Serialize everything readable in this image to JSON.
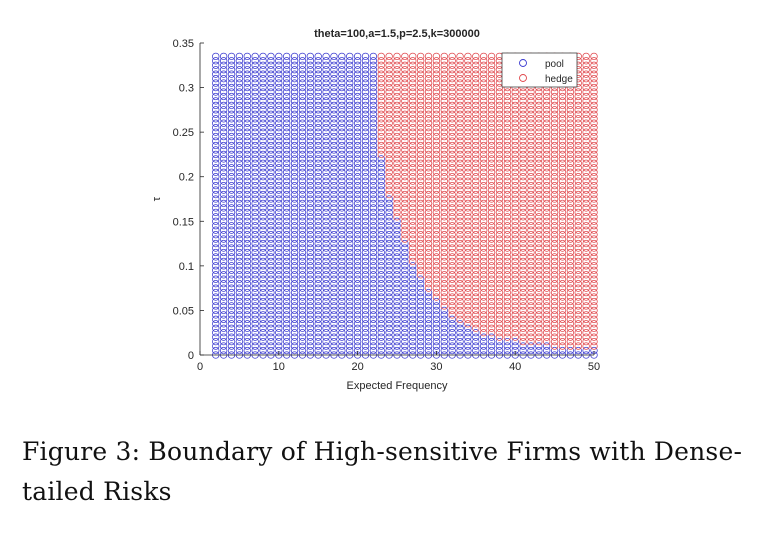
{
  "caption": "Figure 3:  Boundary of High-sensitive Firms with Dense-tailed Risks",
  "chart_data": {
    "type": "scatter",
    "title": "theta=100,a=1.5,p=2.5,k=300000",
    "xlabel": "Expected Frequency",
    "ylabel": "τ",
    "xlim": [
      0,
      50
    ],
    "ylim": [
      0,
      0.35
    ],
    "x_ticks": [
      "0",
      "10",
      "20",
      "30",
      "40",
      "50"
    ],
    "y_ticks": [
      "0",
      "0.05",
      "0.1",
      "0.15",
      "0.2",
      "0.25",
      "0.3",
      "0.35"
    ],
    "grid": false,
    "legend_position": "top-right",
    "marker": "open circle",
    "x_range": [
      2,
      50,
      1
    ],
    "y_range": [
      0,
      0.335,
      0.005
    ],
    "series": [
      {
        "name": "pool",
        "color": "#3b3bd0"
      },
      {
        "name": "hedge",
        "color": "#e0474c"
      }
    ],
    "boundary": [
      {
        "tau": 0.335,
        "x_max_pool": 22
      },
      {
        "tau": 0.3,
        "x_max_pool": 22
      },
      {
        "tau": 0.25,
        "x_max_pool": 22
      },
      {
        "tau": 0.22,
        "x_max_pool": 23
      },
      {
        "tau": 0.2,
        "x_max_pool": 23
      },
      {
        "tau": 0.15,
        "x_max_pool": 25
      },
      {
        "tau": 0.1,
        "x_max_pool": 27
      },
      {
        "tau": 0.07,
        "x_max_pool": 29
      },
      {
        "tau": 0.05,
        "x_max_pool": 31
      },
      {
        "tau": 0.03,
        "x_max_pool": 34
      },
      {
        "tau": 0.02,
        "x_max_pool": 37
      },
      {
        "tau": 0.01,
        "x_max_pool": 44
      },
      {
        "tau": 0.005,
        "x_max_pool": 50
      },
      {
        "tau": 0.0,
        "x_max_pool": 50
      }
    ]
  }
}
